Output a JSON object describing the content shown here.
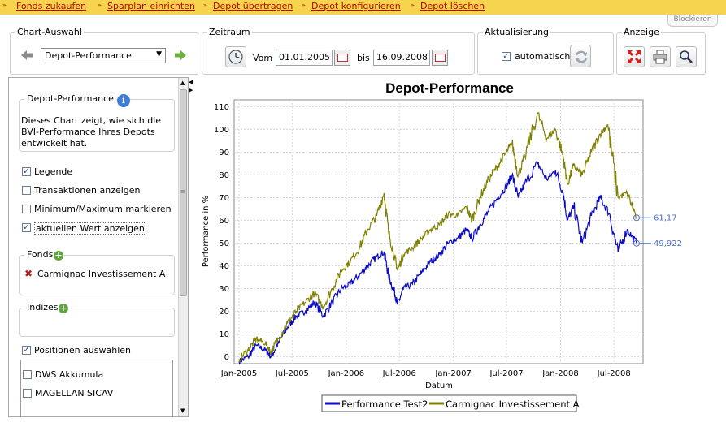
{
  "nav": {
    "links": [
      "Fonds zukaufen",
      "Sparplan einrichten",
      "Depot übertragen",
      "Depot konfigurieren",
      "Depot löschen"
    ],
    "blockieren": "Blockieren"
  },
  "chart_selection": {
    "title": "Chart-Auswahl",
    "selected": "Depot-Performance"
  },
  "period": {
    "title": "Zeitraum",
    "from_label": "Vom",
    "from": "01.01.2005",
    "to_label": "bis",
    "to": "16.09.2008"
  },
  "refresh": {
    "title": "Aktualisierung",
    "auto_label": "automatisch",
    "auto_checked": true
  },
  "display": {
    "title": "Anzeige"
  },
  "side": {
    "info_title": "Depot-Performance",
    "info_text": [
      "Dieses Chart zeigt, wie sich die",
      "BVI-Performance Ihres Depots",
      "entwickelt hat."
    ],
    "options": [
      {
        "label": "Legende",
        "checked": true
      },
      {
        "label": "Transaktionen anzeigen",
        "checked": false
      },
      {
        "label": "Minimum/Maximum markieren",
        "checked": false
      },
      {
        "label": "aktuellen Wert anzeigen",
        "checked": true
      }
    ],
    "funds_title": "Fonds",
    "funds": [
      "Carmignac Investissement A"
    ],
    "indices_title": "Indizes",
    "positions_label": "Positionen auswählen",
    "positions_checked": true,
    "positions": [
      "DWS Akkumula",
      "MAGELLAN SICAV"
    ]
  },
  "chart_data": {
    "type": "line",
    "title": "Depot-Performance",
    "xlabel": "Datum",
    "ylabel": "Performance in %",
    "xlim": [
      "2005-01-01",
      "2008-09-16"
    ],
    "ylim": [
      -3,
      113
    ],
    "yticks": [
      0,
      10,
      20,
      30,
      40,
      50,
      60,
      70,
      80,
      90,
      100,
      110
    ],
    "xticks": [
      "Jan-2005",
      "Jul-2005",
      "Jan-2006",
      "Jul-2006",
      "Jan-2007",
      "Jul-2007",
      "Jan-2008",
      "Jul-2008"
    ],
    "grid": true,
    "legend": "bottom",
    "series": [
      {
        "name": "Performance Test2",
        "color": "#0a0ac8",
        "end_label": "49,922",
        "points": [
          [
            "2005-01-01",
            -2
          ],
          [
            "2005-02-01",
            0
          ],
          [
            "2005-03-01",
            5
          ],
          [
            "2005-04-01",
            3
          ],
          [
            "2005-04-20",
            0
          ],
          [
            "2005-05-15",
            6
          ],
          [
            "2005-06-15",
            13
          ],
          [
            "2005-07-15",
            18
          ],
          [
            "2005-08-15",
            20
          ],
          [
            "2005-09-15",
            24
          ],
          [
            "2005-10-15",
            18
          ],
          [
            "2005-11-15",
            24
          ],
          [
            "2005-12-15",
            30
          ],
          [
            "2006-01-15",
            32
          ],
          [
            "2006-02-15",
            36
          ],
          [
            "2006-03-15",
            40
          ],
          [
            "2006-04-15",
            44
          ],
          [
            "2006-05-10",
            46
          ],
          [
            "2006-05-25",
            36
          ],
          [
            "2006-06-15",
            28
          ],
          [
            "2006-06-25",
            23
          ],
          [
            "2006-07-15",
            30
          ],
          [
            "2006-08-15",
            32
          ],
          [
            "2006-09-15",
            37
          ],
          [
            "2006-10-15",
            42
          ],
          [
            "2006-11-15",
            45
          ],
          [
            "2006-12-15",
            50
          ],
          [
            "2007-01-15",
            52
          ],
          [
            "2007-02-15",
            56
          ],
          [
            "2007-03-05",
            52
          ],
          [
            "2007-04-01",
            58
          ],
          [
            "2007-05-01",
            64
          ],
          [
            "2007-06-01",
            70
          ],
          [
            "2007-07-01",
            75
          ],
          [
            "2007-07-20",
            80
          ],
          [
            "2007-08-10",
            70
          ],
          [
            "2007-09-01",
            76
          ],
          [
            "2007-10-15",
            85
          ],
          [
            "2007-11-15",
            78
          ],
          [
            "2007-12-15",
            82
          ],
          [
            "2008-01-10",
            72
          ],
          [
            "2008-01-25",
            60
          ],
          [
            "2008-02-15",
            66
          ],
          [
            "2008-03-15",
            50
          ],
          [
            "2008-04-15",
            62
          ],
          [
            "2008-05-15",
            70
          ],
          [
            "2008-06-15",
            63
          ],
          [
            "2008-07-15",
            46
          ],
          [
            "2008-08-15",
            56
          ],
          [
            "2008-09-16",
            49.922
          ]
        ]
      },
      {
        "name": "Carmignac Investissement A",
        "color": "#808000",
        "end_label": "61,17",
        "points": [
          [
            "2005-01-01",
            -1
          ],
          [
            "2005-02-01",
            3
          ],
          [
            "2005-03-01",
            8
          ],
          [
            "2005-04-01",
            6
          ],
          [
            "2005-04-20",
            2
          ],
          [
            "2005-05-15",
            8
          ],
          [
            "2005-06-15",
            15
          ],
          [
            "2005-07-15",
            20
          ],
          [
            "2005-08-15",
            24
          ],
          [
            "2005-09-15",
            28
          ],
          [
            "2005-10-15",
            22
          ],
          [
            "2005-11-15",
            30
          ],
          [
            "2005-12-15",
            38
          ],
          [
            "2006-01-15",
            42
          ],
          [
            "2006-02-15",
            48
          ],
          [
            "2006-03-15",
            56
          ],
          [
            "2006-04-15",
            62
          ],
          [
            "2006-05-10",
            72
          ],
          [
            "2006-05-25",
            55
          ],
          [
            "2006-06-15",
            44
          ],
          [
            "2006-06-25",
            38
          ],
          [
            "2006-07-15",
            45
          ],
          [
            "2006-08-15",
            48
          ],
          [
            "2006-09-15",
            52
          ],
          [
            "2006-10-15",
            56
          ],
          [
            "2006-11-15",
            58
          ],
          [
            "2006-12-15",
            63
          ],
          [
            "2007-01-15",
            62
          ],
          [
            "2007-02-15",
            66
          ],
          [
            "2007-03-05",
            60
          ],
          [
            "2007-04-01",
            70
          ],
          [
            "2007-05-01",
            78
          ],
          [
            "2007-06-01",
            84
          ],
          [
            "2007-07-01",
            90
          ],
          [
            "2007-07-20",
            94
          ],
          [
            "2007-08-10",
            80
          ],
          [
            "2007-09-01",
            88
          ],
          [
            "2007-10-15",
            107
          ],
          [
            "2007-11-15",
            96
          ],
          [
            "2007-12-15",
            100
          ],
          [
            "2008-01-10",
            88
          ],
          [
            "2008-01-25",
            76
          ],
          [
            "2008-02-15",
            84
          ],
          [
            "2008-03-15",
            80
          ],
          [
            "2008-04-15",
            90
          ],
          [
            "2008-05-15",
            98
          ],
          [
            "2008-06-10",
            102
          ],
          [
            "2008-07-15",
            70
          ],
          [
            "2008-08-15",
            72
          ],
          [
            "2008-09-16",
            61.17
          ]
        ]
      }
    ]
  }
}
